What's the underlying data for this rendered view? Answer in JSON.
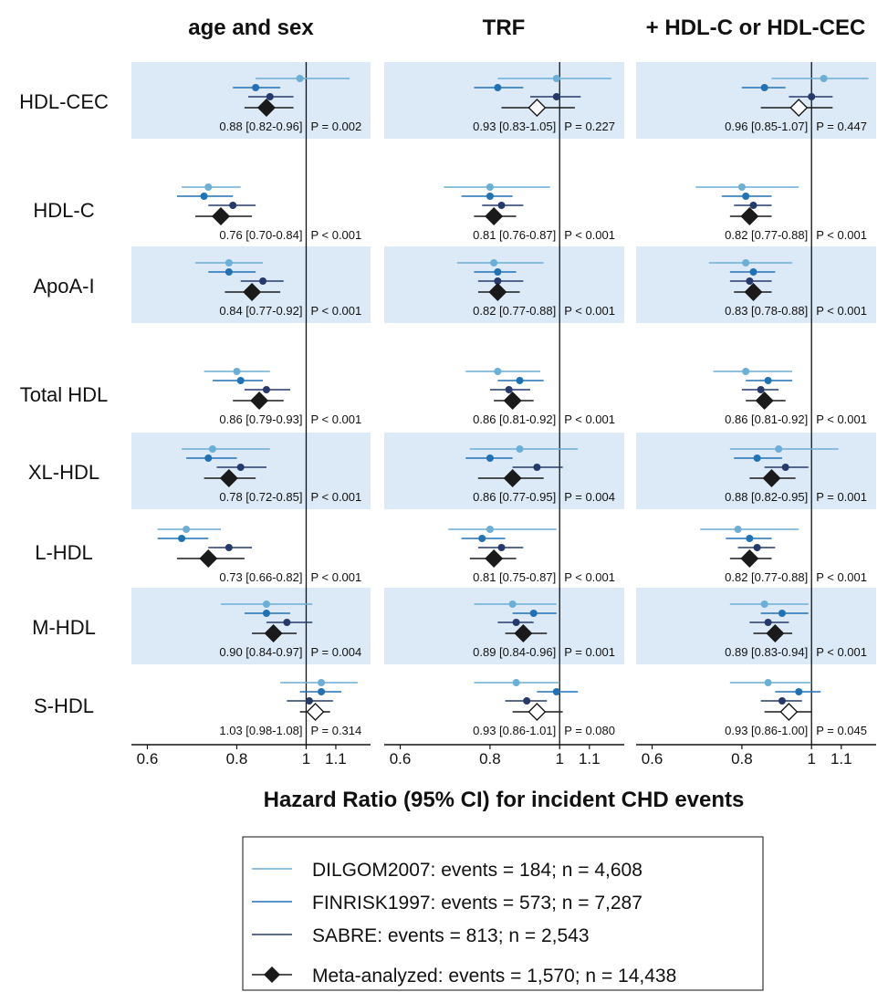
{
  "chart_data": {
    "type": "forest",
    "xlabel": "Hazard Ratio (95% CI) for incident CHD events",
    "x_scale": "log",
    "xlim": [
      0.57,
      1.23
    ],
    "xticks": [
      0.6,
      0.8,
      1,
      1.1
    ],
    "xtick_labels": [
      "0.6",
      "0.8",
      "1",
      "1.1"
    ],
    "reference_line": 1,
    "panels": [
      "age and sex",
      "TRF",
      "+ HDL-C or HDL-CEC"
    ],
    "rows": [
      {
        "label": "HDL-CEC",
        "shaded": true
      },
      {
        "label": "HDL-C",
        "shaded": false
      },
      {
        "label": "ApoA-I",
        "shaded": true
      },
      {
        "label": "Total HDL",
        "shaded": false
      },
      {
        "label": "XL-HDL",
        "shaded": true
      },
      {
        "label": "L-HDL",
        "shaded": false
      },
      {
        "label": "M-HDL",
        "shaded": true
      },
      {
        "label": "S-HDL",
        "shaded": false
      }
    ],
    "series": [
      {
        "name": "DILGOM2007: events = 184; n = 4,608",
        "color": "#6BAED6",
        "marker": "circle"
      },
      {
        "name": "FINRISK1997: events = 573; n = 7,287",
        "color": "#2171B5",
        "marker": "circle"
      },
      {
        "name": "SABRE: events = 813; n = 2,543",
        "color": "#253A6B",
        "marker": "circle"
      },
      {
        "name": "Meta-analyzed: events = 1,570; n = 14,438",
        "color": "#1A1A1A",
        "marker": "diamond"
      }
    ],
    "estimates": [
      [
        {
          "dil": [
            0.98,
            0.85,
            1.15
          ],
          "fin": [
            0.85,
            0.79,
            0.92
          ],
          "sab": [
            0.89,
            0.83,
            0.96
          ],
          "meta": [
            0.88,
            0.82,
            0.96
          ],
          "meta_sig": true,
          "text": "0.88 [0.82-0.96]",
          "p": "P =  0.002"
        },
        {
          "dil": [
            0.73,
            0.67,
            0.81
          ],
          "fin": [
            0.72,
            0.66,
            0.79
          ],
          "sab": [
            0.79,
            0.73,
            0.85
          ],
          "meta": [
            0.76,
            0.7,
            0.84
          ],
          "meta_sig": true,
          "text": "0.76 [0.70-0.84]",
          "p": "P < 0.001"
        },
        {
          "dil": [
            0.78,
            0.7,
            0.87
          ],
          "fin": [
            0.78,
            0.73,
            0.85
          ],
          "sab": [
            0.87,
            0.81,
            0.93
          ],
          "meta": [
            0.84,
            0.77,
            0.92
          ],
          "meta_sig": true,
          "text": "0.84 [0.77-0.92]",
          "p": "P < 0.001"
        },
        {
          "dil": [
            0.8,
            0.72,
            0.89
          ],
          "fin": [
            0.81,
            0.74,
            0.87
          ],
          "sab": [
            0.88,
            0.82,
            0.95
          ],
          "meta": [
            0.86,
            0.79,
            0.93
          ],
          "meta_sig": true,
          "text": "0.86 [0.79-0.93]",
          "p": "P < 0.001"
        },
        {
          "dil": [
            0.74,
            0.67,
            0.89
          ],
          "fin": [
            0.73,
            0.68,
            0.8
          ],
          "sab": [
            0.81,
            0.75,
            0.88
          ],
          "meta": [
            0.78,
            0.72,
            0.85
          ],
          "meta_sig": true,
          "text": "0.78 [0.72-0.85]",
          "p": "P < 0.001"
        },
        {
          "dil": [
            0.68,
            0.62,
            0.76
          ],
          "fin": [
            0.67,
            0.62,
            0.73
          ],
          "sab": [
            0.78,
            0.73,
            0.84
          ],
          "meta": [
            0.73,
            0.66,
            0.82
          ],
          "meta_sig": true,
          "text": "0.73 [0.66-0.82]",
          "p": "P < 0.001"
        },
        {
          "dil": [
            0.88,
            0.76,
            1.02
          ],
          "fin": [
            0.88,
            0.82,
            0.95
          ],
          "sab": [
            0.94,
            0.88,
            1.02
          ],
          "meta": [
            0.9,
            0.84,
            0.97
          ],
          "meta_sig": true,
          "text": "0.90 [0.84-0.97]",
          "p": "P =  0.004"
        },
        {
          "dil": [
            1.05,
            0.92,
            1.18
          ],
          "fin": [
            1.05,
            0.98,
            1.12
          ],
          "sab": [
            1.01,
            0.94,
            1.09
          ],
          "meta": [
            1.03,
            0.98,
            1.08
          ],
          "meta_sig": false,
          "text": "1.03 [0.98-1.08]",
          "p": "P =  0.314"
        }
      ],
      [
        {
          "dil": [
            0.99,
            0.82,
            1.18
          ],
          "fin": [
            0.82,
            0.76,
            0.89
          ],
          "sab": [
            0.99,
            0.91,
            1.07
          ],
          "meta": [
            0.93,
            0.83,
            1.05
          ],
          "meta_sig": false,
          "text": "0.93 [0.83-1.05]",
          "p": "P =  0.227"
        },
        {
          "dil": [
            0.8,
            0.69,
            0.97
          ],
          "fin": [
            0.8,
            0.73,
            0.86
          ],
          "sab": [
            0.83,
            0.78,
            0.89
          ],
          "meta": [
            0.81,
            0.76,
            0.87
          ],
          "meta_sig": true,
          "text": "0.81 [0.76-0.87]",
          "p": "P < 0.001"
        },
        {
          "dil": [
            0.81,
            0.72,
            0.95
          ],
          "fin": [
            0.82,
            0.76,
            0.87
          ],
          "sab": [
            0.82,
            0.77,
            0.89
          ],
          "meta": [
            0.82,
            0.77,
            0.88
          ],
          "meta_sig": true,
          "text": "0.82 [0.77-0.88]",
          "p": "P < 0.001"
        },
        {
          "dil": [
            0.82,
            0.74,
            0.94
          ],
          "fin": [
            0.88,
            0.82,
            0.95
          ],
          "sab": [
            0.85,
            0.8,
            0.91
          ],
          "meta": [
            0.86,
            0.81,
            0.92
          ],
          "meta_sig": true,
          "text": "0.86 [0.81-0.92]",
          "p": "P < 0.001"
        },
        {
          "dil": [
            0.88,
            0.75,
            1.06
          ],
          "fin": [
            0.8,
            0.74,
            0.86
          ],
          "sab": [
            0.93,
            0.86,
            1.01
          ],
          "meta": [
            0.86,
            0.77,
            0.95
          ],
          "meta_sig": true,
          "text": "0.86 [0.77-0.95]",
          "p": "P =  0.004"
        },
        {
          "dil": [
            0.8,
            0.7,
            0.99
          ],
          "fin": [
            0.78,
            0.73,
            0.84
          ],
          "sab": [
            0.83,
            0.77,
            0.89
          ],
          "meta": [
            0.81,
            0.75,
            0.87
          ],
          "meta_sig": true,
          "text": "0.81 [0.75-0.87]",
          "p": "P < 0.001"
        },
        {
          "dil": [
            0.86,
            0.76,
            0.99
          ],
          "fin": [
            0.92,
            0.86,
            0.99
          ],
          "sab": [
            0.87,
            0.82,
            0.92
          ],
          "meta": [
            0.89,
            0.84,
            0.96
          ],
          "meta_sig": true,
          "text": "0.89 [0.84-0.96]",
          "p": "P =  0.001"
        },
        {
          "dil": [
            0.87,
            0.76,
            1.0
          ],
          "fin": [
            0.99,
            0.93,
            1.06
          ],
          "sab": [
            0.9,
            0.84,
            0.96
          ],
          "meta": [
            0.93,
            0.86,
            1.01
          ],
          "meta_sig": false,
          "text": "0.93 [0.86-1.01]",
          "p": "P =  0.080"
        }
      ],
      [
        {
          "dil": [
            1.04,
            0.88,
            1.2
          ],
          "fin": [
            0.86,
            0.8,
            0.92
          ],
          "sab": [
            1.0,
            0.93,
            1.07
          ],
          "meta": [
            0.96,
            0.85,
            1.07
          ],
          "meta_sig": false,
          "text": "0.96 [0.85-1.07]",
          "p": "P =  0.447"
        },
        {
          "dil": [
            0.8,
            0.69,
            0.96
          ],
          "fin": [
            0.81,
            0.75,
            0.88
          ],
          "sab": [
            0.83,
            0.78,
            0.88
          ],
          "meta": [
            0.82,
            0.77,
            0.88
          ],
          "meta_sig": true,
          "text": "0.82 [0.77-0.88]",
          "p": "P < 0.001"
        },
        {
          "dil": [
            0.81,
            0.72,
            0.94
          ],
          "fin": [
            0.83,
            0.77,
            0.89
          ],
          "sab": [
            0.82,
            0.77,
            0.88
          ],
          "meta": [
            0.83,
            0.78,
            0.88
          ],
          "meta_sig": true,
          "text": "0.83 [0.78-0.88]",
          "p": "P < 0.001"
        },
        {
          "dil": [
            0.81,
            0.73,
            0.94
          ],
          "fin": [
            0.87,
            0.81,
            0.94
          ],
          "sab": [
            0.85,
            0.8,
            0.9
          ],
          "meta": [
            0.86,
            0.81,
            0.92
          ],
          "meta_sig": true,
          "text": "0.86 [0.81-0.92]",
          "p": "P < 0.001"
        },
        {
          "dil": [
            0.9,
            0.77,
            1.09
          ],
          "fin": [
            0.84,
            0.78,
            0.91
          ],
          "sab": [
            0.92,
            0.86,
            0.99
          ],
          "meta": [
            0.88,
            0.82,
            0.95
          ],
          "meta_sig": true,
          "text": "0.88 [0.82-0.95]",
          "p": "P =  0.001"
        },
        {
          "dil": [
            0.79,
            0.7,
            0.96
          ],
          "fin": [
            0.82,
            0.76,
            0.88
          ],
          "sab": [
            0.84,
            0.79,
            0.89
          ],
          "meta": [
            0.82,
            0.77,
            0.88
          ],
          "meta_sig": true,
          "text": "0.82 [0.77-0.88]",
          "p": "P < 0.001"
        },
        {
          "dil": [
            0.86,
            0.77,
            0.99
          ],
          "fin": [
            0.91,
            0.85,
            0.99
          ],
          "sab": [
            0.87,
            0.82,
            0.93
          ],
          "meta": [
            0.89,
            0.83,
            0.94
          ],
          "meta_sig": true,
          "text": "0.89 [0.83-0.94]",
          "p": "P < 0.001"
        },
        {
          "dil": [
            0.87,
            0.77,
            1.0
          ],
          "fin": [
            0.96,
            0.89,
            1.03
          ],
          "sab": [
            0.91,
            0.85,
            0.97
          ],
          "meta": [
            0.93,
            0.86,
            1.0
          ],
          "meta_sig": false,
          "text": "0.93 [0.86-1.00]",
          "p": "P =  0.045"
        }
      ]
    ]
  },
  "colors": {
    "shade": "#DCEAF7",
    "axis": "#111111",
    "marker_open_fill": "#FFFFFF"
  }
}
